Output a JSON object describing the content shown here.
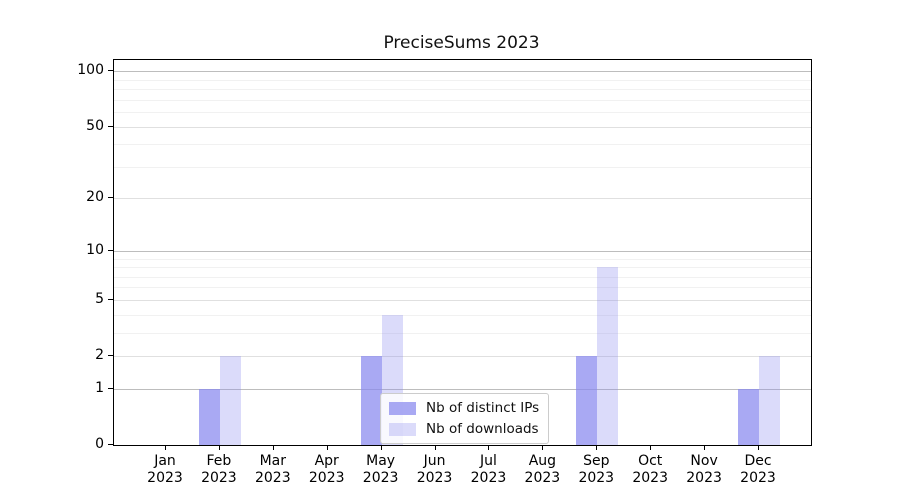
{
  "figure": {
    "title": "PreciseSums 2023",
    "background_color": "#ffffff"
  },
  "chart_data": {
    "type": "bar",
    "title": "PreciseSums 2023",
    "categories": [
      "Jan",
      "Feb",
      "Mar",
      "Apr",
      "May",
      "Jun",
      "Jul",
      "Aug",
      "Sep",
      "Oct",
      "Nov",
      "Dec"
    ],
    "category_year_label": "2023",
    "series": [
      {
        "name": "Nb of distinct IPs",
        "color": "rgba(136,136,238,0.72)",
        "values": [
          0,
          1,
          0,
          0,
          2,
          0,
          0,
          0,
          2,
          0,
          0,
          1
        ]
      },
      {
        "name": "Nb of downloads",
        "color": "rgba(136,136,238,0.30)",
        "values": [
          0,
          2,
          0,
          0,
          4,
          0,
          0,
          0,
          8,
          0,
          0,
          2
        ]
      }
    ],
    "xlabel": "",
    "ylabel": "",
    "y_scale": "log10(value+1)",
    "y_ticks": [
      0,
      1,
      2,
      5,
      10,
      20,
      50,
      100
    ],
    "y_minor_ticks": [
      3,
      4,
      6,
      7,
      8,
      9,
      30,
      40,
      60,
      70,
      80,
      90
    ],
    "y_emphasized_gridlines": [
      1,
      10,
      100
    ],
    "ylim": [
      0,
      115
    ],
    "grid": true,
    "legend_position": "inside bottom-center",
    "colors": {
      "bar_base": "#8888ee",
      "grid_major": "#e0e0e0",
      "grid_minor": "#f1f1f1",
      "grid_emphasis": "#bdbdbd",
      "axis": "#000000",
      "legend_border": "#cccccc"
    }
  }
}
